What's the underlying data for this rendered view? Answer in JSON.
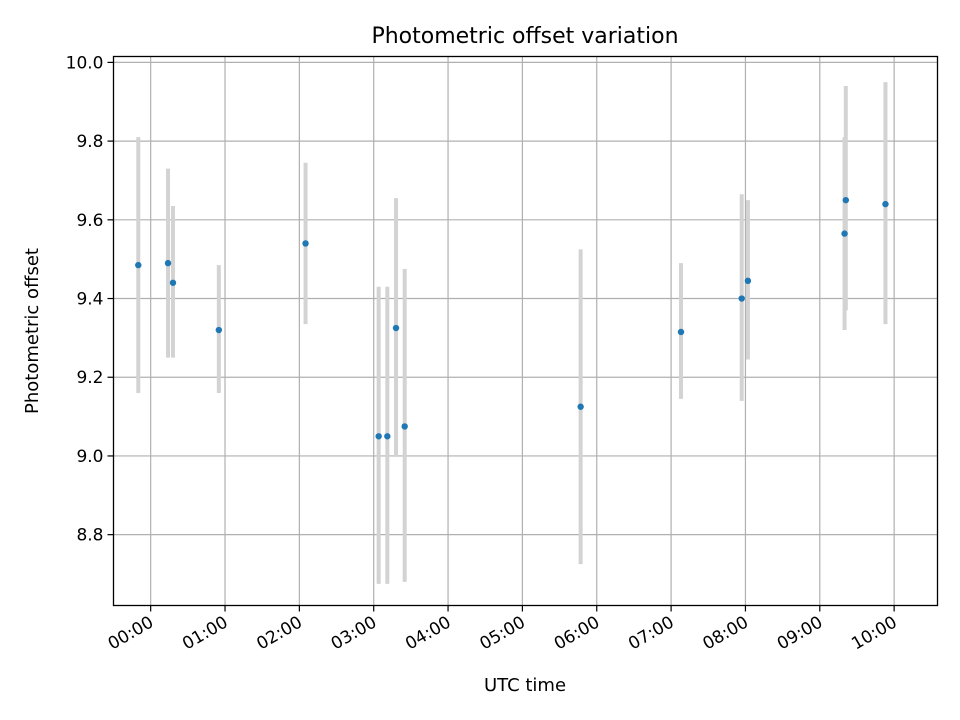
{
  "chart_data": {
    "type": "scatter",
    "title": "Photometric offset variation",
    "xlabel": "UTC time",
    "ylabel": "Photometric offset",
    "x_ticks": [
      "00:00",
      "01:00",
      "02:00",
      "03:00",
      "04:00",
      "05:00",
      "06:00",
      "07:00",
      "08:00",
      "09:00",
      "10:00"
    ],
    "y_ticks": [
      "8.8",
      "9.0",
      "9.2",
      "9.4",
      "9.6",
      "9.8",
      "10.0"
    ],
    "xlim": [
      "-00:30",
      "10:35"
    ],
    "ylim": [
      8.62,
      10.015
    ],
    "grid": true,
    "colors": {
      "point": "#1f77b4",
      "errorbar": "#d3d3d3",
      "grid": "#b0b0b0"
    },
    "series": [
      {
        "points": [
          {
            "x": "-00:10",
            "y": 9.485,
            "y_low": 9.16,
            "y_high": 9.81
          },
          {
            "x": "00:14",
            "y": 9.49,
            "y_low": 9.25,
            "y_high": 9.73
          },
          {
            "x": "00:18",
            "y": 9.44,
            "y_low": 9.25,
            "y_high": 9.635
          },
          {
            "x": "00:55",
            "y": 9.32,
            "y_low": 9.16,
            "y_high": 9.485
          },
          {
            "x": "02:05",
            "y": 9.54,
            "y_low": 9.335,
            "y_high": 9.745
          },
          {
            "x": "03:04",
            "y": 9.05,
            "y_low": 8.675,
            "y_high": 9.43
          },
          {
            "x": "03:11",
            "y": 9.05,
            "y_low": 8.675,
            "y_high": 9.43
          },
          {
            "x": "03:18",
            "y": 9.325,
            "y_low": 9.0,
            "y_high": 9.655
          },
          {
            "x": "03:25",
            "y": 9.075,
            "y_low": 8.68,
            "y_high": 9.475
          },
          {
            "x": "05:47",
            "y": 9.125,
            "y_low": 8.725,
            "y_high": 9.525
          },
          {
            "x": "07:08",
            "y": 9.315,
            "y_low": 9.145,
            "y_high": 9.49
          },
          {
            "x": "07:57",
            "y": 9.4,
            "y_low": 9.14,
            "y_high": 9.665
          },
          {
            "x": "08:02",
            "y": 9.445,
            "y_low": 9.245,
            "y_high": 9.65
          },
          {
            "x": "09:20",
            "y": 9.565,
            "y_low": 9.32,
            "y_high": 9.81
          },
          {
            "x": "09:21",
            "y": 9.65,
            "y_low": 9.37,
            "y_high": 9.94
          },
          {
            "x": "09:53",
            "y": 9.64,
            "y_low": 9.335,
            "y_high": 9.95
          }
        ]
      }
    ]
  }
}
